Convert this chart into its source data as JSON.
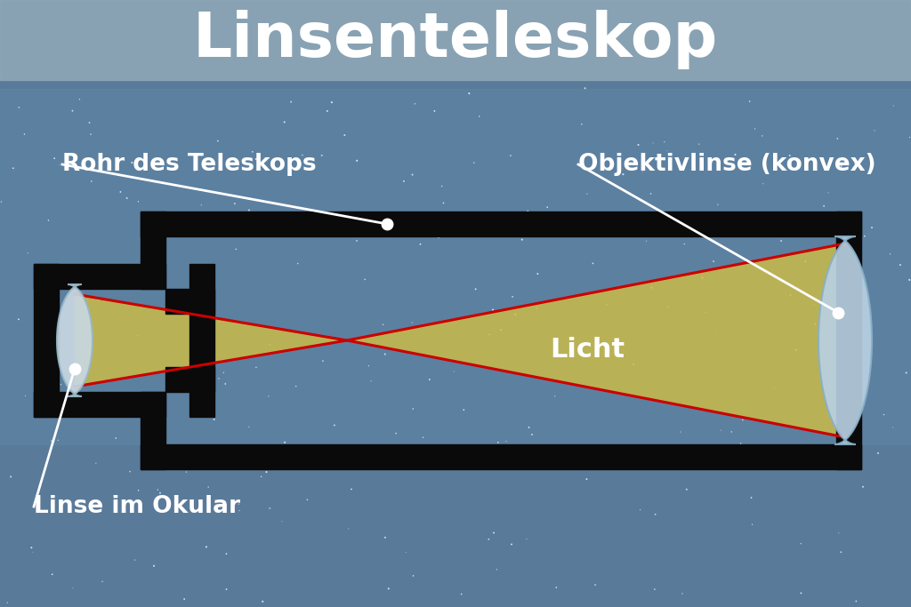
{
  "title": "Linsenteleskop",
  "title_fontsize": 50,
  "title_color": "#ffffff",
  "title_bg_color": "#9ab0c0",
  "bg_color": "#6a8fa8",
  "tube_color": "#0a0a0a",
  "light_color1": "#d4c040",
  "light_color2": "#b8a820",
  "light_alpha": 0.78,
  "ray_color": "#cc0000",
  "ray_lw": 2.2,
  "obj_lens_color": "#b8d0e0",
  "ep_lens_color": "#ccd8df",
  "label_color": "#ffffff",
  "label_fontsize": 19,
  "licht_label": "Licht",
  "licht_fontsize": 22,
  "label_rohr": "Rohr des Teleskops",
  "label_objektiv": "Objektivlinse (konvex)",
  "label_linse": "Linse im Okular",
  "n_stars": 250,
  "star_seed": 77
}
